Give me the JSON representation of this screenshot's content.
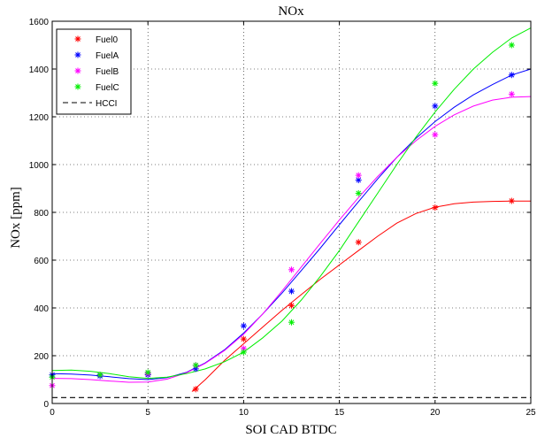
{
  "chart_data": {
    "type": "scatter",
    "title": "NOx",
    "xlabel": "SOI CAD BTDC",
    "ylabel": "NOx [ppm]",
    "xlim": [
      0,
      25
    ],
    "ylim": [
      0,
      1600
    ],
    "xticks": [
      0,
      5,
      10,
      15,
      20,
      25
    ],
    "yticks": [
      0,
      200,
      400,
      600,
      800,
      1000,
      1200,
      1400,
      1600
    ],
    "grid": true,
    "legend_position": "top-left",
    "series": [
      {
        "name": "Fuel0",
        "color": "#ff0000",
        "points": [
          [
            7.5,
            60
          ],
          [
            10,
            270
          ],
          [
            12.5,
            410
          ],
          [
            16,
            675
          ],
          [
            20,
            820
          ],
          [
            24,
            848
          ]
        ],
        "curve": [
          [
            7.3,
            50
          ],
          [
            8,
            100
          ],
          [
            9,
            180
          ],
          [
            10,
            250
          ],
          [
            11,
            320
          ],
          [
            12,
            390
          ],
          [
            13,
            455
          ],
          [
            14,
            520
          ],
          [
            15,
            580
          ],
          [
            16,
            640
          ],
          [
            17,
            700
          ],
          [
            18,
            755
          ],
          [
            19,
            795
          ],
          [
            20,
            822
          ],
          [
            21,
            836
          ],
          [
            22,
            843
          ],
          [
            23,
            846
          ],
          [
            24,
            847
          ],
          [
            25,
            847
          ]
        ]
      },
      {
        "name": "FuelA",
        "color": "#0000ff",
        "points": [
          [
            0,
            120
          ],
          [
            2.5,
            115
          ],
          [
            5,
            120
          ],
          [
            7.5,
            145
          ],
          [
            10,
            325
          ],
          [
            12.5,
            470
          ],
          [
            16,
            935
          ],
          [
            20,
            1245
          ],
          [
            24,
            1375
          ]
        ],
        "curve": [
          [
            0,
            125
          ],
          [
            1,
            123
          ],
          [
            2,
            119
          ],
          [
            3,
            112
          ],
          [
            4,
            104
          ],
          [
            5,
            100
          ],
          [
            6,
            108
          ],
          [
            7,
            130
          ],
          [
            8,
            170
          ],
          [
            9,
            225
          ],
          [
            10,
            295
          ],
          [
            11,
            375
          ],
          [
            12,
            462
          ],
          [
            13,
            555
          ],
          [
            14,
            650
          ],
          [
            15,
            748
          ],
          [
            16,
            845
          ],
          [
            17,
            940
          ],
          [
            18,
            1030
          ],
          [
            19,
            1110
          ],
          [
            20,
            1180
          ],
          [
            21,
            1240
          ],
          [
            22,
            1292
          ],
          [
            23,
            1335
          ],
          [
            24,
            1375
          ],
          [
            25,
            1400
          ]
        ]
      },
      {
        "name": "FuelB",
        "color": "#ff00ff",
        "points": [
          [
            0,
            75
          ],
          [
            2.5,
            120
          ],
          [
            5,
            125
          ],
          [
            7.5,
            160
          ],
          [
            10,
            230
          ],
          [
            12.5,
            560
          ],
          [
            16,
            955
          ],
          [
            20,
            1125
          ],
          [
            24,
            1295
          ]
        ],
        "curve": [
          [
            0,
            105
          ],
          [
            1,
            104
          ],
          [
            2,
            100
          ],
          [
            3,
            94
          ],
          [
            4,
            89
          ],
          [
            5,
            90
          ],
          [
            6,
            102
          ],
          [
            7,
            128
          ],
          [
            8,
            168
          ],
          [
            9,
            222
          ],
          [
            10,
            290
          ],
          [
            11,
            375
          ],
          [
            12,
            470
          ],
          [
            13,
            570
          ],
          [
            14,
            670
          ],
          [
            15,
            768
          ],
          [
            16,
            862
          ],
          [
            17,
            950
          ],
          [
            18,
            1030
          ],
          [
            19,
            1100
          ],
          [
            20,
            1160
          ],
          [
            21,
            1208
          ],
          [
            22,
            1245
          ],
          [
            23,
            1270
          ],
          [
            24,
            1282
          ],
          [
            25,
            1285
          ]
        ]
      },
      {
        "name": "FuelC",
        "color": "#00ee00",
        "points": [
          [
            0,
            110
          ],
          [
            2.5,
            120
          ],
          [
            5,
            130
          ],
          [
            7.5,
            160
          ],
          [
            10,
            215
          ],
          [
            12.5,
            340
          ],
          [
            16,
            880
          ],
          [
            20,
            1340
          ],
          [
            24,
            1500
          ]
        ],
        "curve": [
          [
            0,
            138
          ],
          [
            1,
            140
          ],
          [
            2,
            135
          ],
          [
            3,
            125
          ],
          [
            4,
            112
          ],
          [
            5,
            105
          ],
          [
            6,
            110
          ],
          [
            7,
            125
          ],
          [
            8,
            145
          ],
          [
            9,
            175
          ],
          [
            10,
            215
          ],
          [
            11,
            275
          ],
          [
            12,
            345
          ],
          [
            13,
            432
          ],
          [
            14,
            532
          ],
          [
            15,
            640
          ],
          [
            16,
            760
          ],
          [
            17,
            880
          ],
          [
            18,
            1000
          ],
          [
            19,
            1115
          ],
          [
            20,
            1220
          ],
          [
            21,
            1315
          ],
          [
            22,
            1400
          ],
          [
            23,
            1470
          ],
          [
            24,
            1530
          ],
          [
            25,
            1572
          ]
        ]
      },
      {
        "name": "HCCI",
        "color": "#000000",
        "dashed": true,
        "curve": [
          [
            0,
            25
          ],
          [
            25,
            25
          ]
        ]
      }
    ]
  }
}
